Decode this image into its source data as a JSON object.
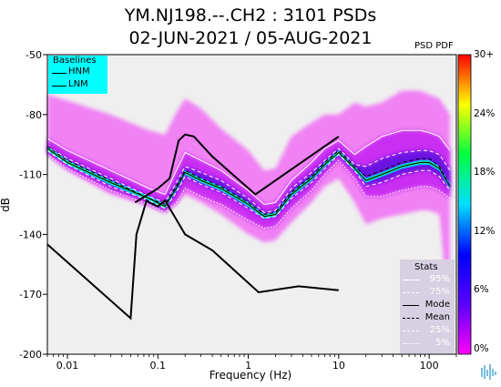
{
  "chart_data": {
    "type": "heatmap",
    "title": "YM.NJ198.--.CH2 : 3101 PSDs",
    "subtitle": "02-JUN-2021 / 05-AUG-2021",
    "xlabel": "Frequency (Hz)",
    "ylabel": "dB",
    "xscale": "log",
    "xlim": [
      0.006,
      200
    ],
    "ylim": [
      -200,
      -50
    ],
    "xticks": [
      0.01,
      0.1,
      1,
      10,
      100
    ],
    "xtick_labels": [
      "0.01",
      "0.1",
      "1",
      "10",
      "100"
    ],
    "yticks": [
      -50,
      -80,
      -110,
      -140,
      -170,
      -200
    ],
    "ytick_labels": [
      "-50",
      "-80",
      "-110",
      "-140",
      "-170",
      "-200"
    ],
    "colorbar": {
      "label": "PSD PDF",
      "range": [
        0,
        30
      ],
      "tick_labels": [
        "30+",
        "24%",
        "18%",
        "12%",
        "6%",
        "0%"
      ],
      "colors": [
        "#ff00ff",
        "#5a00ff",
        "#0000ff",
        "#00e0ff",
        "#00ff40",
        "#ffff00",
        "#ff0000"
      ]
    },
    "baselines": {
      "title": "Baselines",
      "entries": [
        "HNM",
        "LNM"
      ],
      "HNM": {
        "freq": [
          0.056,
          0.1,
          0.135,
          0.17,
          0.2,
          0.25,
          0.4,
          1.2,
          10
        ],
        "db": [
          -124,
          -117,
          -112,
          -93,
          -90,
          -91,
          -101,
          -120,
          -91
        ]
      },
      "LNM": {
        "freq": [
          0.006,
          0.05,
          0.058,
          0.075,
          0.08,
          0.1,
          0.12,
          0.2,
          0.4,
          1.3,
          3.6,
          10
        ],
        "db": [
          -145,
          -182,
          -140,
          -123,
          -124,
          -126,
          -123,
          -140,
          -148,
          -169,
          -166,
          -168
        ]
      }
    },
    "stats": {
      "title": "Stats",
      "entries": [
        "95%",
        "75%",
        "Mode",
        "Mean",
        "25%",
        "5%"
      ],
      "freq": [
        0.006,
        0.01,
        0.03,
        0.08,
        0.12,
        0.16,
        0.2,
        0.3,
        0.5,
        1,
        1.5,
        2,
        3,
        5,
        7,
        10,
        15,
        20,
        30,
        50,
        80,
        100,
        130,
        170
      ],
      "p95": [
        -92,
        -98,
        -108,
        -117,
        -120,
        -108,
        -99,
        -103,
        -108,
        -118,
        -125,
        -124,
        -113,
        -104,
        -97,
        -93,
        -100,
        -96,
        -91,
        -88,
        -88,
        -89,
        -91,
        -98
      ],
      "p75": [
        -96,
        -102,
        -112,
        -121,
        -124,
        -114,
        -106,
        -109,
        -113,
        -122,
        -129,
        -128,
        -117,
        -109,
        -103,
        -97,
        -105,
        -106,
        -102,
        -99,
        -98,
        -98,
        -100,
        -108
      ],
      "mode": [
        -97,
        -104,
        -114,
        -122,
        -126,
        -117,
        -109,
        -113,
        -117,
        -125,
        -131,
        -130,
        -120,
        -112,
        -105,
        -99,
        -107,
        -113,
        -110,
        -106,
        -104,
        -104,
        -107,
        -116
      ],
      "mean": [
        -96,
        -103,
        -113,
        -122,
        -125,
        -116,
        -108,
        -112,
        -116,
        -124,
        -130,
        -129,
        -119,
        -111,
        -104,
        -98,
        -106,
        -111,
        -108,
        -104,
        -102,
        -102,
        -106,
        -116
      ],
      "p25": [
        -98,
        -105,
        -116,
        -123,
        -127,
        -119,
        -111,
        -115,
        -119,
        -127,
        -132,
        -131,
        -122,
        -114,
        -107,
        -100,
        -108,
        -116,
        -114,
        -110,
        -108,
        -108,
        -111,
        -118
      ],
      "p5": [
        -100,
        -107,
        -118,
        -125,
        -129,
        -124,
        -117,
        -121,
        -125,
        -133,
        -137,
        -136,
        -127,
        -118,
        -110,
        -103,
        -112,
        -121,
        -121,
        -118,
        -116,
        -116,
        -118,
        -122
      ],
      "spread_top": [
        -70,
        -73,
        -80,
        -88,
        -90,
        -79,
        -72,
        -77,
        -87,
        -98,
        -108,
        -107,
        -91,
        -84,
        -80,
        -80,
        -74,
        -76,
        -74,
        -68,
        -68,
        -70,
        -72,
        -80
      ],
      "spread_bottom": [
        -100,
        -108,
        -120,
        -126,
        -129,
        -125,
        -120,
        -124,
        -130,
        -140,
        -144,
        -143,
        -134,
        -124,
        -116,
        -112,
        -124,
        -135,
        -132,
        -130,
        -128,
        -128,
        -130,
        -188
      ]
    }
  }
}
